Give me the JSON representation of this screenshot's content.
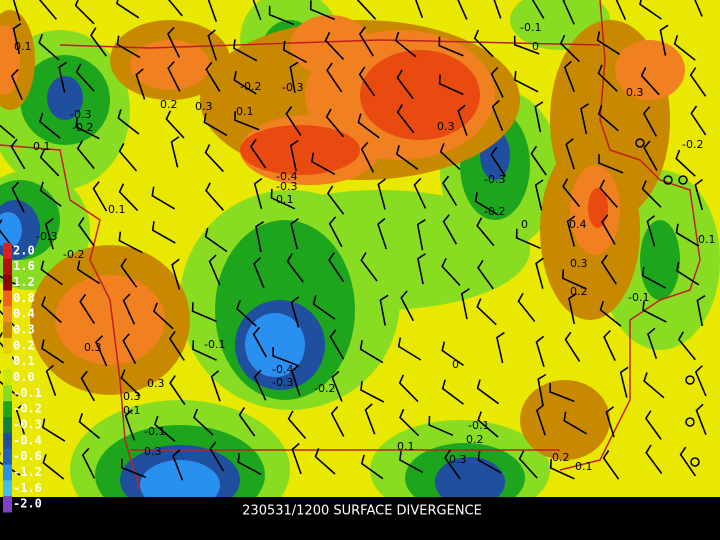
{
  "caption": "230531/1200 SURFACE DIVERGENCE",
  "legend_labels": [
    "2.0",
    "1.6",
    "1.2",
    "0.8",
    "0.4",
    "0.3",
    "0.2",
    "0.1",
    "0.0",
    "-0.1",
    "-0.2",
    "-0.3",
    "-0.4",
    "-0.6",
    "-1.2",
    "-1.6",
    "-2.0"
  ],
  "contour_labels": [
    "0.1",
    "0.2",
    "0.3",
    "-0.2",
    "-0.3",
    "0.1",
    "0.3",
    "-0.1",
    "0",
    "0.3",
    "-0.2",
    "-0.3",
    "-0.2",
    "0.1",
    "0.1",
    "-0.4",
    "-0.3",
    "0.1",
    "-0.3",
    "-0.2",
    "0",
    "0.4",
    "0.3",
    "0.2",
    "-0.1",
    "-0.3",
    "-0.2",
    "0.3",
    "-0.1",
    "-0.4",
    "-0.3",
    "-0.2",
    "0.3",
    "0.3",
    "0.1",
    "0",
    "-0.1",
    "0.2",
    "-0.1",
    "0.3",
    "0.1",
    "0.3",
    "0.2",
    "0.1",
    "0.1"
  ]
}
